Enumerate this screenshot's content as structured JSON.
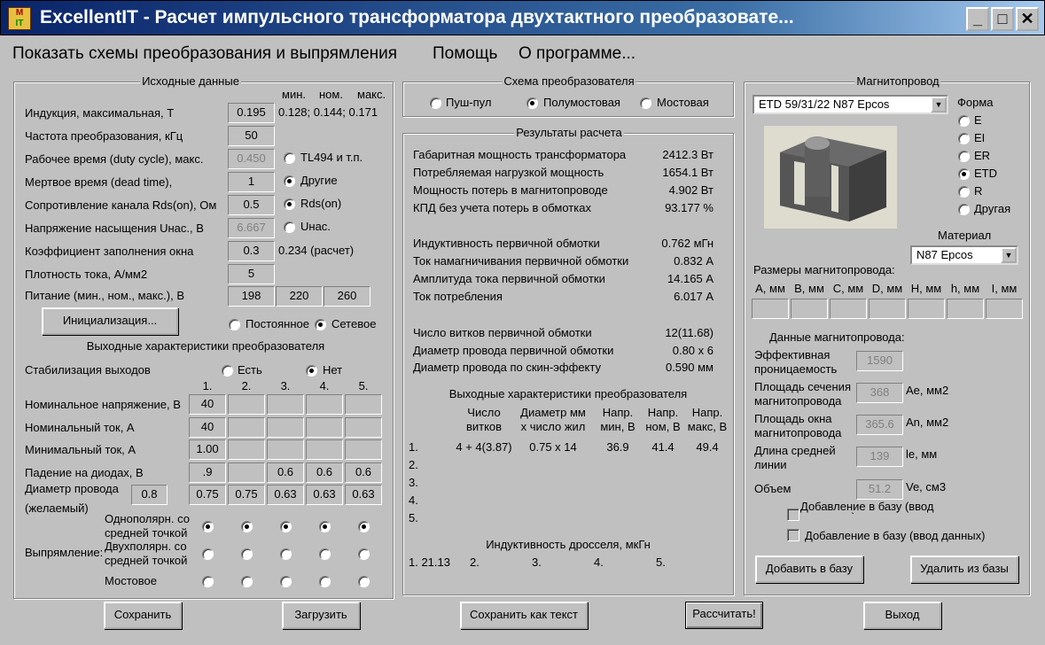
{
  "window": {
    "title": "ExcellentIT - Расчет импульсного трансформатора двухтактного преобразовате...",
    "app_icon": "app-icon",
    "minimize": "_",
    "maximize": "□",
    "close": "✕"
  },
  "menu": [
    "Показать схемы преобразования и выпрямления",
    "Помощь",
    "О программе..."
  ],
  "input": {
    "title": "Исходные данные",
    "col_headers": [
      "мин.",
      "ном.",
      "макс."
    ],
    "rows": [
      {
        "label": "Индукция, максимальная, Т",
        "value": "0.195",
        "note": "0.128; 0.144; 0.171"
      },
      {
        "label": "Частота преобразования, кГц",
        "value": "50"
      },
      {
        "label": "Рабочее время (duty cycle), макс.",
        "value": "0.450",
        "disabled": true
      },
      {
        "label": "Мертвое время (dead time),",
        "value": "1"
      },
      {
        "label": "Сопротивление канала Rds(on), Ом",
        "value": "0.5"
      },
      {
        "label": "Напряжение насыщения Uнас., В",
        "value": "6.667",
        "disabled": true
      },
      {
        "label": "Коэффициент заполнения окна",
        "value": "0.3",
        "note": "0.234 (расчет)"
      },
      {
        "label": "Плотность тока, А/мм2",
        "value": "5"
      }
    ],
    "controller_radios": [
      {
        "label": "TL494 и т.п.",
        "checked": false
      },
      {
        "label": "Другие",
        "checked": true
      }
    ],
    "switch_radios": [
      {
        "label": "Rds(on)",
        "checked": true
      },
      {
        "label": "Uнас.",
        "checked": false
      }
    ],
    "supply_label": "Питание (мин., ном., макс.), В",
    "supply": [
      "198",
      "220",
      "260"
    ],
    "init_button": "Инициализация...",
    "supply_type": [
      {
        "label": "Постоянное",
        "checked": false
      },
      {
        "label": "Сетевое",
        "checked": true
      }
    ]
  },
  "outputs": {
    "title": "Выходные характеристики преобразователя",
    "stab_label": "Стабилизация выходов",
    "stab": [
      {
        "label": "Есть",
        "checked": false
      },
      {
        "label": "Нет",
        "checked": true
      }
    ],
    "columns": [
      "1.",
      "2.",
      "3.",
      "4.",
      "5."
    ],
    "rows": [
      {
        "label": "Номинальное напряжение, В",
        "values": [
          "40",
          "",
          "",
          "",
          ""
        ]
      },
      {
        "label": "Номинальный ток, А",
        "values": [
          "40",
          "",
          "",
          "",
          ""
        ]
      },
      {
        "label": "Минимальный ток, А",
        "values": [
          "1.00",
          "",
          "",
          "",
          ""
        ]
      },
      {
        "label": "Падение на диодах, В",
        "values": [
          ".9",
          "",
          "0.6",
          "0.6",
          "0.6"
        ]
      },
      {
        "label": "Диаметр провода",
        "values": [
          "0.75",
          "0.75",
          "0.63",
          "0.63",
          "0.63"
        ]
      }
    ],
    "wire_label_2": "(желаемый)",
    "wire_desired": "0.8",
    "rect_label": "Выпрямление:",
    "rect_types": [
      {
        "l1": "Однополярн. со",
        "l2": "средней точкой",
        "checked": [
          true,
          true,
          true,
          true,
          true
        ]
      },
      {
        "l1": "Двухполярн. со",
        "l2": "средней точкой",
        "checked": [
          false,
          false,
          false,
          false,
          false
        ]
      },
      {
        "l1": "Мостовое",
        "l2": "",
        "checked": [
          false,
          false,
          false,
          false,
          false
        ]
      }
    ]
  },
  "scheme": {
    "title": "Схема преобразователя",
    "options": [
      {
        "label": "Пуш-пул",
        "checked": false
      },
      {
        "label": "Полумостовая",
        "checked": true
      },
      {
        "label": "Мостовая",
        "checked": false
      }
    ]
  },
  "results": {
    "title": "Результаты расчета",
    "lines": [
      {
        "label": "Габаритная мощность трансформатора",
        "value": "2412.3 Вт"
      },
      {
        "label": "Потребляемая нагрузкой мощность",
        "value": "1654.1 Вт"
      },
      {
        "label": "Мощность потерь в магнитопроводе",
        "value": "4.902 Вт"
      },
      {
        "label": "КПД без учета потерь в обмотках",
        "value": "93.177 %"
      },
      {
        "label": "Индуктивность первичной обмотки",
        "value": "0.762 мГн"
      },
      {
        "label": "Ток намагничивания первичной обмотки",
        "value": "0.832 А"
      },
      {
        "label": "Амплитуда тока первичной обмотки",
        "value": "14.165 А"
      },
      {
        "label": "Ток потребления",
        "value": "6.017 А"
      },
      {
        "label": "Число витков первичной обмотки",
        "value": "12(11.68)"
      },
      {
        "label": "Диаметр провода первичной обмотки",
        "value": "0.80 x 6"
      },
      {
        "label": "Диаметр провода по скин-эффекту",
        "value": "0.590 мм"
      }
    ],
    "out_title": "Выходные характеристики преобразователя",
    "out_headers": [
      [
        "Число",
        "витков"
      ],
      [
        "Диаметр мм",
        "х число жил"
      ],
      [
        "Напр.",
        "мин, В"
      ],
      [
        "Напр.",
        "ном, В"
      ],
      [
        "Напр.",
        "макс, В"
      ]
    ],
    "out_rows": [
      {
        "n": "1.",
        "values": [
          "4 + 4(3.87)",
          "0.75 x 14",
          "36.9",
          "41.4",
          "49.4"
        ]
      },
      {
        "n": "2.",
        "values": [
          "",
          "",
          "",
          "",
          ""
        ]
      },
      {
        "n": "3.",
        "values": [
          "",
          "",
          "",
          "",
          ""
        ]
      },
      {
        "n": "4.",
        "values": [
          "",
          "",
          "",
          "",
          ""
        ]
      },
      {
        "n": "5.",
        "values": [
          "",
          "",
          "",
          "",
          ""
        ]
      }
    ],
    "choke_title": "Индуктивность дросселя, мкГн",
    "choke": [
      "1. 21.13",
      "2.",
      "3.",
      "4.",
      "5."
    ]
  },
  "core": {
    "title": "Магнитопровод",
    "selected": "ETD 59/31/22 N87 Epcos",
    "shape_label": "Форма",
    "shapes": [
      {
        "label": "E",
        "checked": false
      },
      {
        "label": "EI",
        "checked": false
      },
      {
        "label": "ER",
        "checked": false
      },
      {
        "label": "ETD",
        "checked": true
      },
      {
        "label": "R",
        "checked": false
      },
      {
        "label": "Другая",
        "checked": false
      }
    ],
    "material_label": "Материал",
    "material": "N87 Epcos",
    "dims_label": "Размеры магнитопровода:",
    "dims": [
      "A, мм",
      "B, мм",
      "C, мм",
      "D, мм",
      "H, мм",
      "h, мм",
      "I, мм"
    ],
    "data_label": "Данные магнитопровода:",
    "params": [
      {
        "l1": "Эффективная",
        "l2": "проницаемость",
        "value": "1590",
        "unit": ""
      },
      {
        "l1": "Площадь сечения",
        "l2": "магнитопровода",
        "value": "368",
        "unit": "Ae, мм2"
      },
      {
        "l1": "Площадь окна",
        "l2": "магнитопровода",
        "value": "365.6",
        "unit": "An, мм2"
      },
      {
        "l1": "Длина средней",
        "l2": "линии",
        "value": "139",
        "unit": "le, мм"
      },
      {
        "l1": "Объем",
        "l2": "",
        "value": "51.2",
        "unit": "Ve, см3"
      }
    ],
    "chk_dims": "Добавление в базу (ввод размеров)",
    "chk_data": "Добавление в базу (ввод данных)",
    "add_button": "Добавить в базу",
    "remove_button": "Удалить из базы"
  },
  "bottom": {
    "save": "Сохранить",
    "load": "Загрузить",
    "save_text": "Сохранить как текст",
    "calculate": "Рассчитать!",
    "exit": "Выход"
  }
}
